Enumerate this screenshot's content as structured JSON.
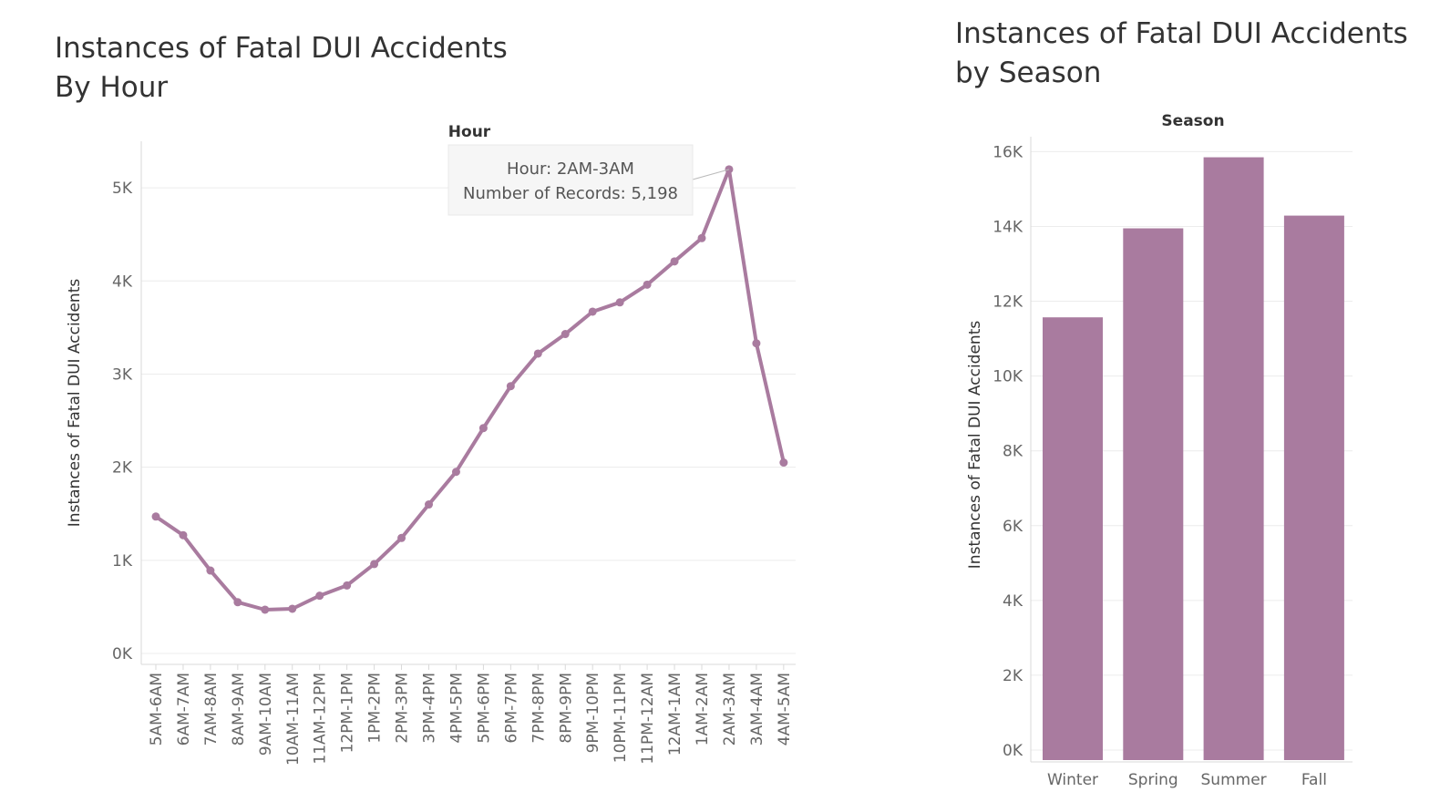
{
  "colors": {
    "series": "#a97b9f",
    "grid": "#ececec",
    "text": "#333333"
  },
  "chart_data": [
    {
      "type": "line",
      "title": "Instances of Fatal DUI Accidents",
      "subtitle": "By Hour",
      "xlabel": "Hour",
      "ylabel": "Instances of Fatal DUI Accidents",
      "categories": [
        "5AM-6AM",
        "6AM-7AM",
        "7AM-8AM",
        "8AM-9AM",
        "9AM-10AM",
        "10AM-11AM",
        "11AM-12PM",
        "12PM-1PM",
        "1PM-2PM",
        "2PM-3PM",
        "3PM-4PM",
        "4PM-5PM",
        "5PM-6PM",
        "6PM-7PM",
        "7PM-8PM",
        "8PM-9PM",
        "9PM-10PM",
        "10PM-11PM",
        "11PM-12AM",
        "12AM-1AM",
        "1AM-2AM",
        "2AM-3AM",
        "3AM-4AM",
        "4AM-5AM"
      ],
      "series": [
        {
          "values": [
            1470,
            1270,
            890,
            550,
            470,
            480,
            620,
            730,
            960,
            1240,
            1600,
            1950,
            2420,
            2870,
            3220,
            3430,
            3670,
            3770,
            3960,
            4210,
            4460,
            5198,
            3330,
            2050
          ]
        }
      ],
      "ylim": [
        0,
        5500
      ],
      "yticks": [
        0,
        1000,
        2000,
        3000,
        4000,
        5000
      ],
      "ytick_labels": [
        "0K",
        "1K",
        "2K",
        "3K",
        "4K",
        "5K"
      ],
      "grid": true,
      "tooltip": {
        "hour_line": "Hour: 2AM-3AM",
        "records_line": "Number of Records: 5,198",
        "point_index": 21
      }
    },
    {
      "type": "bar",
      "title": "Instances of Fatal DUI Accidents",
      "subtitle": "by Season",
      "xlabel": "Season",
      "ylabel": "Instances of Fatal DUI Accidents",
      "categories": [
        "Winter",
        "Spring",
        "Summer",
        "Fall"
      ],
      "values": [
        11570,
        13950,
        15850,
        14290
      ],
      "ylim": [
        0,
        16400
      ],
      "yticks": [
        0,
        2000,
        4000,
        6000,
        8000,
        10000,
        12000,
        14000,
        16000
      ],
      "ytick_labels": [
        "0K",
        "2K",
        "4K",
        "6K",
        "8K",
        "10K",
        "12K",
        "14K",
        "16K"
      ],
      "grid": true
    }
  ]
}
